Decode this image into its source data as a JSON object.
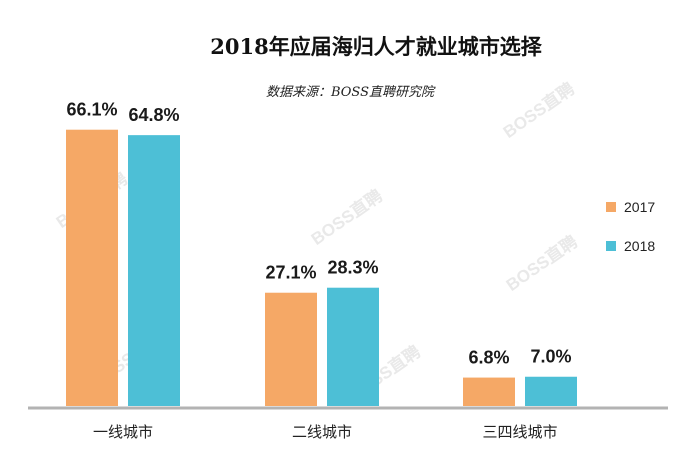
{
  "chart_data": {
    "type": "bar",
    "title": "2018年应届海归人才就业城市选择",
    "subtitle": "数据来源：BOSS直聘研究院",
    "categories": [
      "一线城市",
      "二线城市",
      "三四线城市"
    ],
    "series": [
      {
        "name": "2017",
        "values": [
          66.1,
          27.1,
          6.8
        ],
        "labels": [
          "66.1%",
          "27.1%",
          "6.8%"
        ],
        "color": "#F5A866"
      },
      {
        "name": "2018",
        "values": [
          64.8,
          28.3,
          7.0
        ],
        "labels": [
          "64.8%",
          "28.3%",
          "7.0%"
        ],
        "color": "#4DBFD6"
      }
    ],
    "unit": "%",
    "ylim": [
      0,
      70
    ],
    "grid": false,
    "legend": "right"
  },
  "watermark": "BOSS直聘"
}
